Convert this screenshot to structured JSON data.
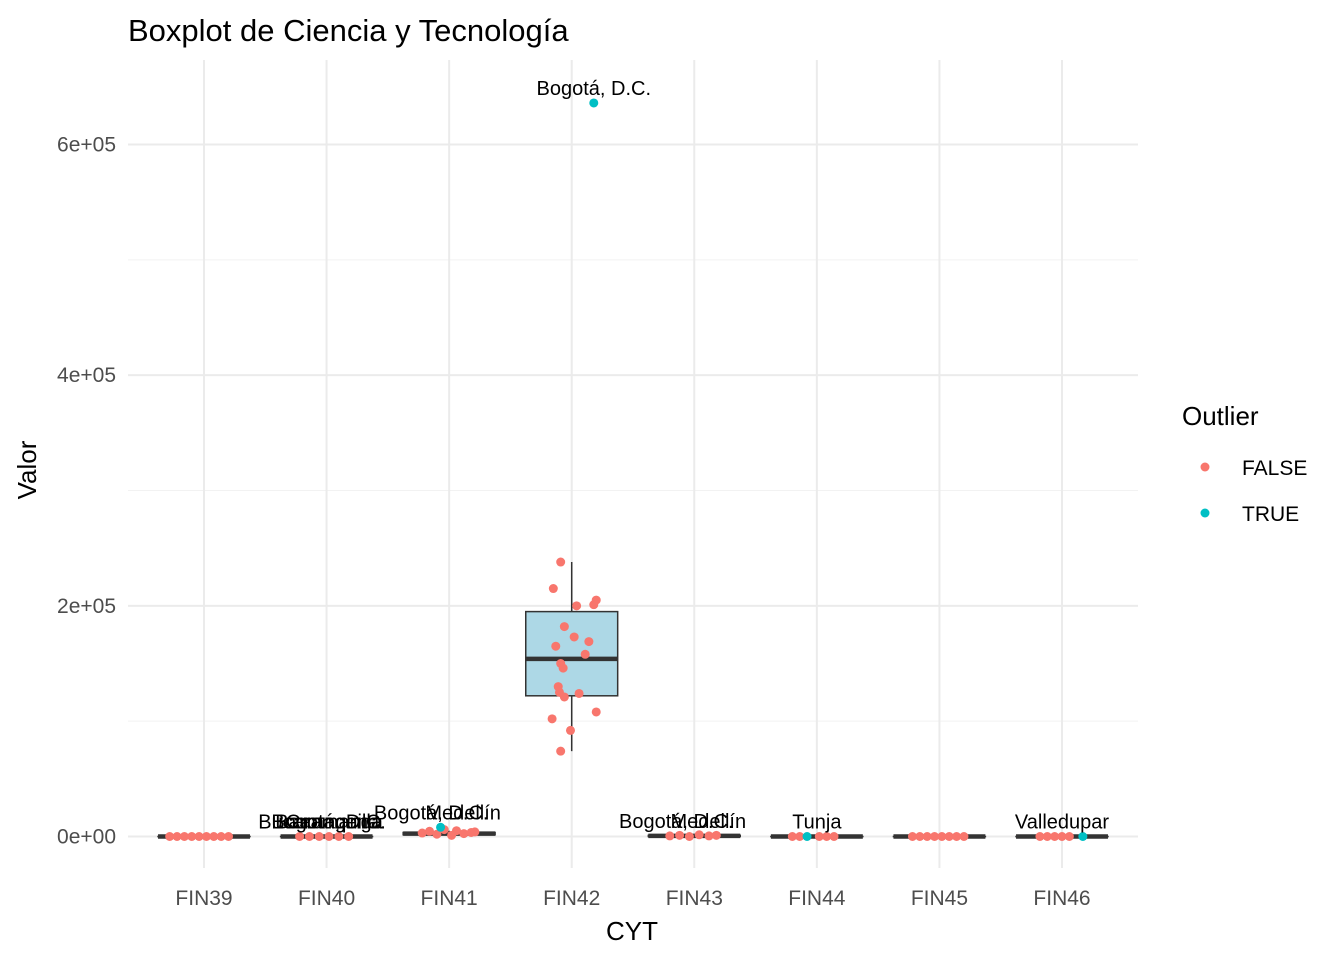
{
  "chart_data": {
    "type": "boxplot",
    "title": "Boxplot de Ciencia y Tecnología",
    "xlabel": "CYT",
    "ylabel": "Valor",
    "categories": [
      "FIN39",
      "FIN40",
      "FIN41",
      "FIN42",
      "FIN43",
      "FIN44",
      "FIN45",
      "FIN46"
    ],
    "y_ticks": [
      {
        "value": 0,
        "label": "0e+00"
      },
      {
        "value": 200000,
        "label": "2e+05"
      },
      {
        "value": 400000,
        "label": "4e+05"
      },
      {
        "value": 600000,
        "label": "6e+05"
      }
    ],
    "ylim": [
      -30000,
      670000
    ],
    "grid": true,
    "box_fill": "#add8e6",
    "legend": {
      "title": "Outlier",
      "placement": "right",
      "entries": [
        {
          "label": "FALSE",
          "color": "#f8766d"
        },
        {
          "label": "TRUE",
          "color": "#00bfc4"
        }
      ]
    },
    "boxes": [
      {
        "category": "FIN39",
        "q1": 0,
        "median": 0,
        "q3": 0,
        "whisker_low": 0,
        "whisker_high": 0
      },
      {
        "category": "FIN40",
        "q1": 0,
        "median": 0,
        "q3": 0,
        "whisker_low": 0,
        "whisker_high": 0
      },
      {
        "category": "FIN41",
        "q1": 1500,
        "median": 2500,
        "q3": 3500,
        "whisker_low": 0,
        "whisker_high": 5000
      },
      {
        "category": "FIN42",
        "q1": 122000,
        "median": 154000,
        "q3": 195000,
        "whisker_low": 74000,
        "whisker_high": 238000
      },
      {
        "category": "FIN43",
        "q1": 0,
        "median": 500,
        "q3": 1000,
        "whisker_low": 0,
        "whisker_high": 1500
      },
      {
        "category": "FIN44",
        "q1": 0,
        "median": 0,
        "q3": 0,
        "whisker_low": 0,
        "whisker_high": 0
      },
      {
        "category": "FIN45",
        "q1": 0,
        "median": 0,
        "q3": 0,
        "whisker_low": 0,
        "whisker_high": 0
      },
      {
        "category": "FIN46",
        "q1": 0,
        "median": 0,
        "q3": 0,
        "whisker_low": 0,
        "whisker_high": 0
      }
    ],
    "points": [
      {
        "category": "FIN39",
        "jitter": -0.28,
        "value": 0,
        "outlier": false
      },
      {
        "category": "FIN39",
        "jitter": -0.22,
        "value": 0,
        "outlier": false
      },
      {
        "category": "FIN39",
        "jitter": -0.16,
        "value": 0,
        "outlier": false
      },
      {
        "category": "FIN39",
        "jitter": -0.1,
        "value": 0,
        "outlier": false
      },
      {
        "category": "FIN39",
        "jitter": -0.04,
        "value": 0,
        "outlier": false
      },
      {
        "category": "FIN39",
        "jitter": 0.02,
        "value": 0,
        "outlier": false
      },
      {
        "category": "FIN39",
        "jitter": 0.08,
        "value": 0,
        "outlier": false
      },
      {
        "category": "FIN39",
        "jitter": 0.14,
        "value": 0,
        "outlier": false
      },
      {
        "category": "FIN39",
        "jitter": 0.2,
        "value": 0,
        "outlier": false
      },
      {
        "category": "FIN40",
        "jitter": -0.22,
        "value": 0,
        "outlier": false
      },
      {
        "category": "FIN40",
        "jitter": -0.14,
        "value": 0,
        "outlier": false
      },
      {
        "category": "FIN40",
        "jitter": -0.06,
        "value": 0,
        "outlier": false
      },
      {
        "category": "FIN40",
        "jitter": 0.02,
        "value": 0,
        "outlier": false
      },
      {
        "category": "FIN40",
        "jitter": 0.1,
        "value": 0,
        "outlier": false
      },
      {
        "category": "FIN40",
        "jitter": 0.18,
        "value": 0,
        "outlier": false
      },
      {
        "category": "FIN41",
        "jitter": -0.22,
        "value": 3000,
        "outlier": false
      },
      {
        "category": "FIN41",
        "jitter": -0.16,
        "value": 4500,
        "outlier": false
      },
      {
        "category": "FIN41",
        "jitter": -0.1,
        "value": 2000,
        "outlier": false
      },
      {
        "category": "FIN41",
        "jitter": -0.04,
        "value": 6000,
        "outlier": false
      },
      {
        "category": "FIN41",
        "jitter": 0.02,
        "value": 1000,
        "outlier": false
      },
      {
        "category": "FIN41",
        "jitter": 0.06,
        "value": 5000,
        "outlier": false
      },
      {
        "category": "FIN41",
        "jitter": 0.12,
        "value": 2500,
        "outlier": false
      },
      {
        "category": "FIN41",
        "jitter": 0.18,
        "value": 3500,
        "outlier": false
      },
      {
        "category": "FIN41",
        "jitter": 0.21,
        "value": 4000,
        "outlier": false
      },
      {
        "category": "FIN41",
        "jitter": -0.07,
        "value": 8000,
        "outlier": true
      },
      {
        "category": "FIN42",
        "jitter": -0.15,
        "value": 215000,
        "outlier": false
      },
      {
        "category": "FIN42",
        "jitter": -0.09,
        "value": 238000,
        "outlier": false
      },
      {
        "category": "FIN42",
        "jitter": 0.04,
        "value": 200000,
        "outlier": false
      },
      {
        "category": "FIN42",
        "jitter": 0.2,
        "value": 205000,
        "outlier": false
      },
      {
        "category": "FIN42",
        "jitter": 0.18,
        "value": 201000,
        "outlier": false
      },
      {
        "category": "FIN42",
        "jitter": -0.06,
        "value": 182000,
        "outlier": false
      },
      {
        "category": "FIN42",
        "jitter": 0.02,
        "value": 173000,
        "outlier": false
      },
      {
        "category": "FIN42",
        "jitter": 0.14,
        "value": 169000,
        "outlier": false
      },
      {
        "category": "FIN42",
        "jitter": -0.13,
        "value": 165000,
        "outlier": false
      },
      {
        "category": "FIN42",
        "jitter": 0.11,
        "value": 158000,
        "outlier": false
      },
      {
        "category": "FIN42",
        "jitter": -0.09,
        "value": 150000,
        "outlier": false
      },
      {
        "category": "FIN42",
        "jitter": -0.07,
        "value": 146000,
        "outlier": false
      },
      {
        "category": "FIN42",
        "jitter": -0.11,
        "value": 130000,
        "outlier": false
      },
      {
        "category": "FIN42",
        "jitter": -0.1,
        "value": 125000,
        "outlier": false
      },
      {
        "category": "FIN42",
        "jitter": -0.06,
        "value": 121000,
        "outlier": false
      },
      {
        "category": "FIN42",
        "jitter": 0.06,
        "value": 124000,
        "outlier": false
      },
      {
        "category": "FIN42",
        "jitter": -0.16,
        "value": 102000,
        "outlier": false
      },
      {
        "category": "FIN42",
        "jitter": 0.2,
        "value": 108000,
        "outlier": false
      },
      {
        "category": "FIN42",
        "jitter": -0.01,
        "value": 92000,
        "outlier": false
      },
      {
        "category": "FIN42",
        "jitter": -0.09,
        "value": 74000,
        "outlier": false
      },
      {
        "category": "FIN42",
        "jitter": 0.18,
        "value": 636000,
        "outlier": true
      },
      {
        "category": "FIN43",
        "jitter": -0.2,
        "value": 500,
        "outlier": false
      },
      {
        "category": "FIN43",
        "jitter": -0.12,
        "value": 1000,
        "outlier": false
      },
      {
        "category": "FIN43",
        "jitter": -0.04,
        "value": 0,
        "outlier": false
      },
      {
        "category": "FIN43",
        "jitter": 0.04,
        "value": 1500,
        "outlier": false
      },
      {
        "category": "FIN43",
        "jitter": 0.12,
        "value": 500,
        "outlier": false
      },
      {
        "category": "FIN43",
        "jitter": 0.18,
        "value": 1000,
        "outlier": false
      },
      {
        "category": "FIN44",
        "jitter": -0.2,
        "value": 0,
        "outlier": false
      },
      {
        "category": "FIN44",
        "jitter": -0.14,
        "value": 0,
        "outlier": false
      },
      {
        "category": "FIN44",
        "jitter": 0.02,
        "value": 0,
        "outlier": false
      },
      {
        "category": "FIN44",
        "jitter": 0.08,
        "value": 0,
        "outlier": false
      },
      {
        "category": "FIN44",
        "jitter": 0.14,
        "value": 0,
        "outlier": false
      },
      {
        "category": "FIN44",
        "jitter": -0.08,
        "value": 0,
        "outlier": true
      },
      {
        "category": "FIN45",
        "jitter": -0.22,
        "value": 0,
        "outlier": false
      },
      {
        "category": "FIN45",
        "jitter": -0.16,
        "value": 0,
        "outlier": false
      },
      {
        "category": "FIN45",
        "jitter": -0.1,
        "value": 0,
        "outlier": false
      },
      {
        "category": "FIN45",
        "jitter": -0.04,
        "value": 0,
        "outlier": false
      },
      {
        "category": "FIN45",
        "jitter": 0.02,
        "value": 0,
        "outlier": false
      },
      {
        "category": "FIN45",
        "jitter": 0.08,
        "value": 0,
        "outlier": false
      },
      {
        "category": "FIN45",
        "jitter": 0.14,
        "value": 0,
        "outlier": false
      },
      {
        "category": "FIN45",
        "jitter": 0.2,
        "value": 0,
        "outlier": false
      },
      {
        "category": "FIN46",
        "jitter": -0.18,
        "value": 0,
        "outlier": false
      },
      {
        "category": "FIN46",
        "jitter": -0.12,
        "value": 0,
        "outlier": false
      },
      {
        "category": "FIN46",
        "jitter": -0.06,
        "value": 0,
        "outlier": false
      },
      {
        "category": "FIN46",
        "jitter": 0.0,
        "value": 0,
        "outlier": false
      },
      {
        "category": "FIN46",
        "jitter": 0.06,
        "value": 0,
        "outlier": false
      },
      {
        "category": "FIN46",
        "jitter": 0.17,
        "value": 0,
        "outlier": true
      }
    ],
    "point_labels": [
      {
        "category": "FIN40",
        "value": 0,
        "text": "Bucaramanga"
      },
      {
        "category": "FIN40",
        "value": 0,
        "text": "Bogotá, D.C."
      },
      {
        "category": "FIN40",
        "value": 0,
        "text": "Cartagena"
      },
      {
        "category": "FIN40",
        "value": 0,
        "text": "Barranquilla"
      },
      {
        "category": "FIN41",
        "value": 8000,
        "text": "Bogotá, D.C."
      },
      {
        "category": "FIN41",
        "value": 8000,
        "text": "Medellín"
      },
      {
        "category": "FIN42",
        "value": 636000,
        "text": "Bogotá, D.C."
      },
      {
        "category": "FIN43",
        "value": 500,
        "text": "Bogotá, D.C."
      },
      {
        "category": "FIN43",
        "value": 500,
        "text": "Medellín"
      },
      {
        "category": "FIN44",
        "value": 0,
        "text": "Tunja"
      },
      {
        "category": "FIN46",
        "value": 0,
        "text": "Valledupar"
      }
    ]
  }
}
